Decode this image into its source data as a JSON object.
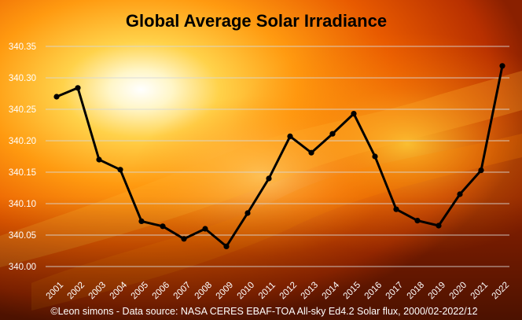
{
  "chart_data": {
    "type": "line",
    "title": "Global Average Solar Irradiance",
    "credit": "©Leon simons - Data source: NASA CERES EBAF-TOA All-sky Ed4.2 Solar flux, 2000/02-2022/12",
    "xlabel": "",
    "ylabel": "",
    "ylim": [
      340.0,
      340.35
    ],
    "y_ticks": [
      "340.00",
      "340.05",
      "340.10",
      "340.15",
      "340.20",
      "340.25",
      "340.30",
      "340.35"
    ],
    "grid": true,
    "x": [
      "2001",
      "2002",
      "2003",
      "2004",
      "2005",
      "2006",
      "2007",
      "2008",
      "2009",
      "2010",
      "2011",
      "2012",
      "2013",
      "2014",
      "2015",
      "2016",
      "2017",
      "2018",
      "2019",
      "2020",
      "2021",
      "2022"
    ],
    "series": [
      {
        "values": [
          340.27,
          340.284,
          340.17,
          340.154,
          340.072,
          340.064,
          340.044,
          340.06,
          340.032,
          340.085,
          340.14,
          340.207,
          340.181,
          340.211,
          340.243,
          340.175,
          340.091,
          340.073,
          340.065,
          340.115,
          340.153,
          340.319
        ],
        "color": "#000000"
      }
    ],
    "colors": {
      "line": "#000000",
      "marker": "#000000",
      "gridline": "#d9d9d9",
      "tick_text": "#ffffff",
      "title": "#000000"
    }
  }
}
